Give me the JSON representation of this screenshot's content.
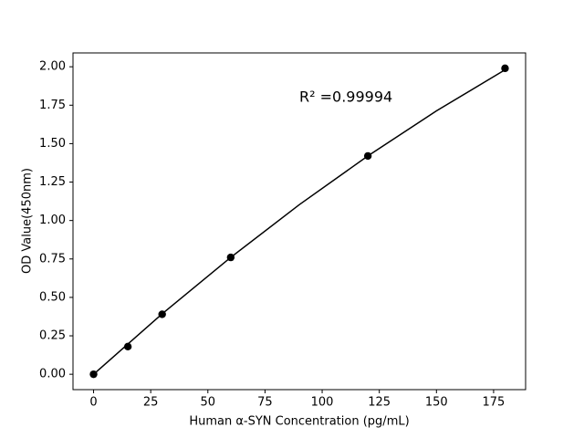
{
  "chart_data": {
    "type": "scatter",
    "xlabel": "Human α-SYN Concentration (pg/mL)",
    "ylabel": "OD Value(450nm)",
    "annotation": {
      "text": "R² =0.99994",
      "x": 90,
      "y": 1.8
    },
    "x": [
      0,
      15,
      30,
      60,
      120,
      180
    ],
    "values": [
      0,
      0.18,
      0.39,
      0.76,
      1.42,
      1.99
    ],
    "color": "#000000",
    "curve": {
      "x": [
        0,
        30,
        60,
        90,
        120,
        150,
        180
      ],
      "y": [
        0,
        0.393,
        0.76,
        1.103,
        1.42,
        1.713,
        1.98
      ]
    },
    "xlim": [
      -9,
      189
    ],
    "ylim": [
      -0.1,
      2.09
    ],
    "xticks": [
      0,
      25,
      50,
      75,
      100,
      125,
      150,
      175
    ],
    "yticks": [
      {
        "value": 0,
        "label": "0.00"
      },
      {
        "value": 0.25,
        "label": "0.25"
      },
      {
        "value": 0.5,
        "label": "0.50"
      },
      {
        "value": 0.75,
        "label": "0.75"
      },
      {
        "value": 1,
        "label": "1.00"
      },
      {
        "value": 1.25,
        "label": "1.25"
      },
      {
        "value": 1.5,
        "label": "1.50"
      },
      {
        "value": 1.75,
        "label": "1.75"
      },
      {
        "value": 2,
        "label": "2.00"
      }
    ],
    "grid": false
  }
}
